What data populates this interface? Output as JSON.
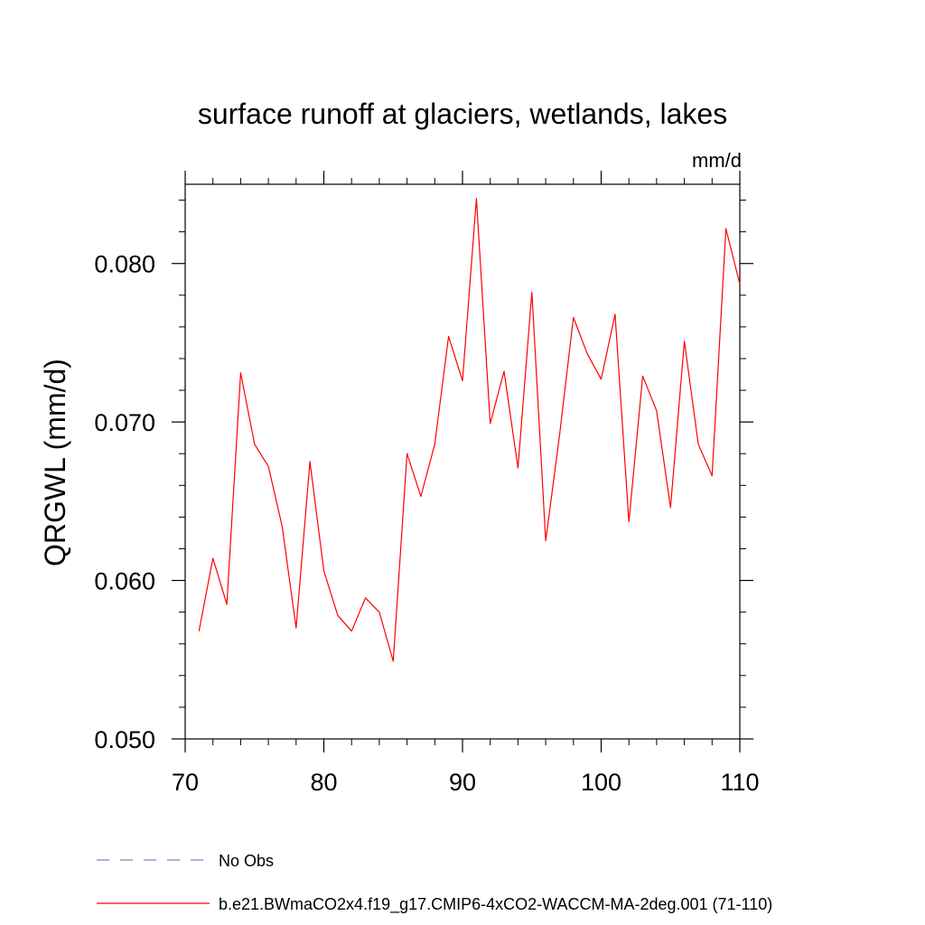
{
  "chart_data": {
    "type": "line",
    "title": "surface runoff at glaciers, wetlands, lakes",
    "units": "mm/d",
    "ylabel": "QRGWL  (mm/d)",
    "xlabel": "",
    "xlim": [
      70,
      110
    ],
    "ylim": [
      0.05,
      0.085
    ],
    "x_ticks": [
      70,
      80,
      90,
      100,
      110
    ],
    "y_ticks": [
      0.05,
      0.06,
      0.07,
      0.08
    ],
    "x_tick_labels": [
      "70",
      "80",
      "90",
      "100",
      "110"
    ],
    "y_tick_labels": [
      "0.050",
      "0.060",
      "0.070",
      "0.080"
    ],
    "series": [
      {
        "name": "b.e21.BWmaCO2x4.f19_g17.CMIP6-4xCO2-WACCM-MA-2deg.001 (71-110)",
        "color": "#ff0000",
        "x": [
          71,
          72,
          73,
          74,
          75,
          76,
          77,
          78,
          79,
          80,
          81,
          82,
          83,
          84,
          85,
          86,
          87,
          88,
          89,
          90,
          91,
          92,
          93,
          94,
          95,
          96,
          97,
          98,
          99,
          100,
          101,
          102,
          103,
          104,
          105,
          106,
          107,
          108,
          109,
          110
        ],
        "values": [
          0.0568,
          0.0614,
          0.0585,
          0.0731,
          0.0686,
          0.0672,
          0.0634,
          0.057,
          0.0675,
          0.0606,
          0.0578,
          0.0568,
          0.0589,
          0.058,
          0.0549,
          0.068,
          0.0653,
          0.0686,
          0.0754,
          0.0726,
          0.0841,
          0.0699,
          0.0732,
          0.0671,
          0.0782,
          0.0625,
          0.0692,
          0.0766,
          0.0743,
          0.0727,
          0.0768,
          0.0637,
          0.0729,
          0.0707,
          0.0646,
          0.0751,
          0.0686,
          0.0666,
          0.0822,
          0.0787
        ]
      }
    ],
    "legend": [
      {
        "label": "No Obs",
        "color": "#8080c0",
        "style": "dashed"
      },
      {
        "label": "b.e21.BWmaCO2x4.f19_g17.CMIP6-4xCO2-WACCM-MA-2deg.001 (71-110)",
        "color": "#ff0000",
        "style": "solid"
      }
    ],
    "legend_position": "bottom",
    "grid": false
  }
}
